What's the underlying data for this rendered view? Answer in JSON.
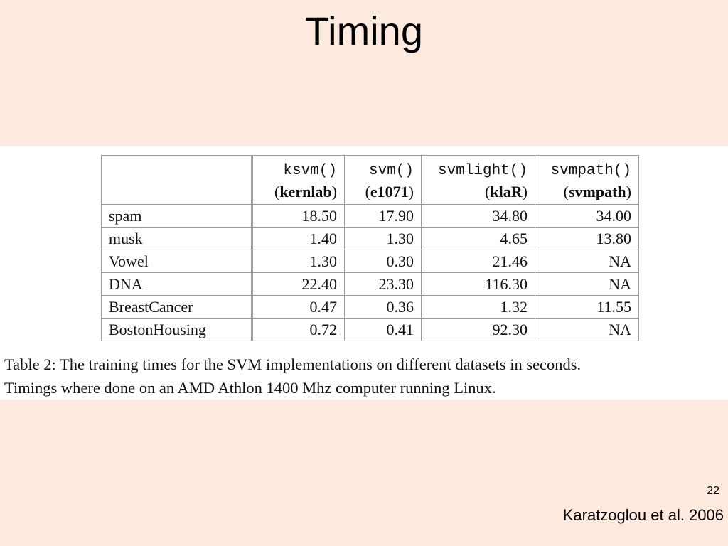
{
  "slide": {
    "title": "Timing",
    "page_number": "22",
    "citation": "Karatzoglou et al. 2006"
  },
  "table": {
    "columns": [
      {
        "function": "ksvm()",
        "open": "(",
        "package": "kernlab",
        "close": ")"
      },
      {
        "function": "svm()",
        "open": "(",
        "package": "e1071",
        "close": ")"
      },
      {
        "function": "svmlight()",
        "open": "(",
        "package": "klaR",
        "close": ")"
      },
      {
        "function": "svmpath()",
        "open": "(",
        "package": "svmpath",
        "close": ")"
      }
    ],
    "rows": [
      {
        "dataset": "spam",
        "values": [
          "18.50",
          "17.90",
          "34.80",
          "34.00"
        ]
      },
      {
        "dataset": "musk",
        "values": [
          "1.40",
          "1.30",
          "4.65",
          "13.80"
        ]
      },
      {
        "dataset": "Vowel",
        "values": [
          "1.30",
          "0.30",
          "21.46",
          "NA"
        ]
      },
      {
        "dataset": "DNA",
        "values": [
          "22.40",
          "23.30",
          "116.30",
          "NA"
        ]
      },
      {
        "dataset": "BreastCancer",
        "values": [
          "0.47",
          "0.36",
          "1.32",
          "11.55"
        ]
      },
      {
        "dataset": "BostonHousing",
        "values": [
          "0.72",
          "0.41",
          "92.30",
          "NA"
        ]
      }
    ],
    "caption_line1": "Table 2:  The training times for the SVM implementations on different datasets in seconds.",
    "caption_line2": "Timings where done on an AMD Athlon 1400 Mhz computer running Linux."
  }
}
